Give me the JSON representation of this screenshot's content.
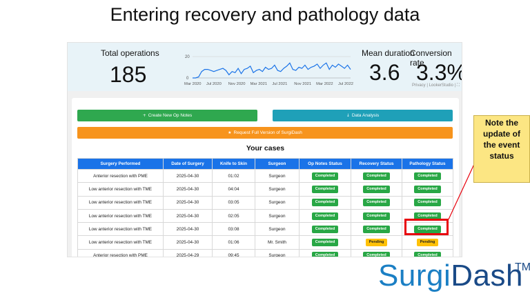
{
  "slide": {
    "title": "Entering recovery and pathology data"
  },
  "stats": {
    "total_label": "Total operations",
    "total_value": "185",
    "mean_label": "Mean duration",
    "mean_value": "3.6",
    "conversion_label": "Conversion rate",
    "conversion_value": "3.3%",
    "privacy_text": "Privacy | LookerStudio | ⛶"
  },
  "chart_data": {
    "type": "line",
    "x_ticks": [
      "Mar 2020",
      "Jul 2020",
      "Nov 2020",
      "Mar 2021",
      "Jul 2021",
      "Nov 2021",
      "Mar 2022",
      "Jul 2022"
    ],
    "y_ticks": [
      "20",
      "0"
    ],
    "ylim": [
      0,
      20
    ],
    "values": [
      0,
      0,
      1,
      6,
      8,
      8,
      7,
      6,
      7,
      8,
      9,
      7,
      3,
      6,
      5,
      9,
      4,
      8,
      9,
      11,
      5,
      7,
      8,
      6,
      10,
      8,
      9,
      12,
      7,
      6,
      9,
      11,
      14,
      8,
      7,
      10,
      9,
      12,
      8,
      10,
      11,
      13,
      9,
      12,
      14,
      8,
      12,
      10,
      13,
      11,
      9,
      12,
      8
    ]
  },
  "actions": {
    "create_icon": "+",
    "create_label": "Create New Op Notes",
    "analysis_icon": "↓",
    "analysis_label": "Data Analysis",
    "request_icon": "★",
    "request_label": "Request Full Version of SurgiDash"
  },
  "cases": {
    "title": "Your cases",
    "columns": [
      "Surgery Performed",
      "Date of Surgery",
      "Knife to Skin",
      "Surgeon",
      "Op Notes Status",
      "Recovery Status",
      "Pathology Status"
    ],
    "rows": [
      [
        "Anterior resection with PME",
        "2025-04-30",
        "01:02",
        "Surgeon",
        "Completed",
        "Completed",
        "Completed"
      ],
      [
        "Low anterior resection with TME",
        "2025-04-30",
        "04:04",
        "Surgeon",
        "Completed",
        "Completed",
        "Completed"
      ],
      [
        "Low anterior resection with TME",
        "2025-04-30",
        "03:05",
        "Surgeon",
        "Completed",
        "Completed",
        "Completed"
      ],
      [
        "Low anterior resection with TME",
        "2025-04-30",
        "02:05",
        "Surgeon",
        "Completed",
        "Completed",
        "Completed"
      ],
      [
        "Low anterior resection with TME",
        "2025-04-30",
        "03:08",
        "Surgeon",
        "Completed",
        "Completed",
        "Completed"
      ],
      [
        "Low anterior resection with TME",
        "2025-04-30",
        "01:06",
        "Mr. Smith",
        "Completed",
        "Pending",
        "Pending"
      ],
      [
        "Anterior resection with PME",
        "2025-04-29",
        "09:45",
        "Surgeon",
        "Completed",
        "Completed",
        "Completed"
      ]
    ]
  },
  "callout": {
    "lines": [
      "Note the",
      "update of",
      "the event",
      "status"
    ]
  },
  "brand": {
    "part1": "Surgi",
    "part2": "Dash",
    "tm": "TM"
  },
  "colors": {
    "accent_blue": "#1a73e8",
    "success": "#28a745",
    "pending": "#ffc107",
    "highlight": "#e8000b",
    "callout_bg": "#fce683"
  }
}
